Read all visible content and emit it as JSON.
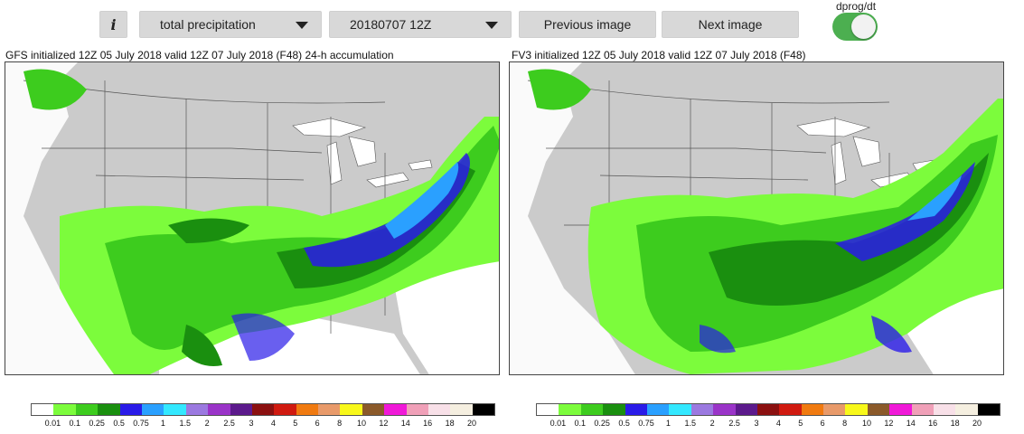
{
  "toolbar": {
    "info_label": "i",
    "variable_select": "total precipitation",
    "date_select": "20180707 12Z",
    "previous_label": "Previous image",
    "next_label": "Next image",
    "toggle_label": "dprog/dt",
    "toggle_on": true
  },
  "panels": [
    {
      "title": "GFS initialized 12Z 05 July 2018 valid 12Z 07 July 2018 (F48) 24-h accumulation"
    },
    {
      "title": "FV3 initialized 12Z 05 July 2018 valid 12Z 07 July 2018 (F48)"
    }
  ],
  "colorbar": {
    "colors": [
      "#ffffff",
      "#7cfc3c",
      "#3dcc1e",
      "#1a8f0f",
      "#2a1be8",
      "#2aa0ff",
      "#33e8ff",
      "#9b79e0",
      "#9a34c8",
      "#5c1a8c",
      "#8b1010",
      "#d01a10",
      "#f07a10",
      "#e89a6a",
      "#f8f81a",
      "#8b5a2a",
      "#f019d8",
      "#f0a0b8",
      "#f8e0e8",
      "#f5efe0",
      "#000000"
    ],
    "ticks": [
      "0.01",
      "0.1",
      "0.25",
      "0.5",
      "0.75",
      "1",
      "1.5",
      "2",
      "2.5",
      "3",
      "4",
      "5",
      "6",
      "8",
      "10",
      "12",
      "14",
      "16",
      "18",
      "20"
    ]
  },
  "colors": {
    "land": "#cbcbcb",
    "water": "#ffffff",
    "toggle_on": "#4caf50"
  }
}
